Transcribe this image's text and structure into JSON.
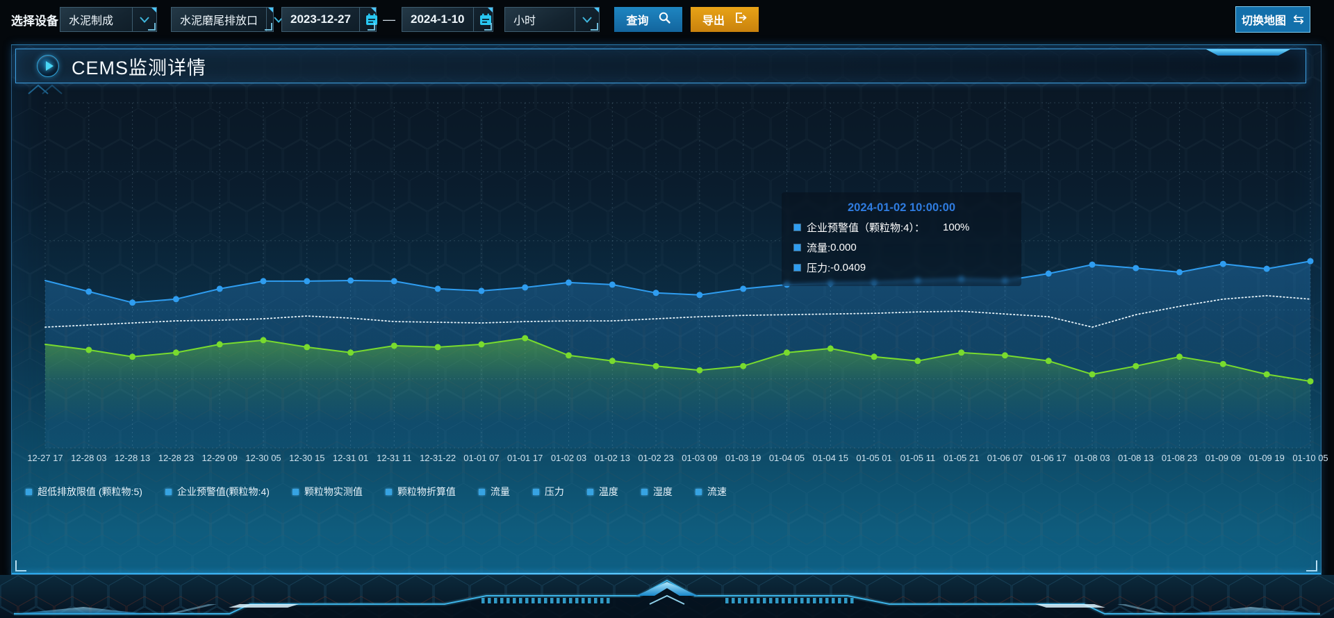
{
  "toolbar": {
    "device_label": "选择设备",
    "select_device": "水泥制成",
    "select_outlet": "水泥磨尾排放口",
    "date_start": "2023-12-27",
    "date_separator": "—",
    "date_end": "2024-1-10",
    "select_interval": "小时",
    "query_label": "查询",
    "export_label": "导出",
    "switch_map_label": "切换地图",
    "switch_icon": "⇆"
  },
  "panel": {
    "title": "CEMS监测详情"
  },
  "tooltip": {
    "timestamp": "2024-01-02 10:00:00",
    "rows": [
      {
        "name": "企业预警值（颗粒物:4）：",
        "value": "100%",
        "gap": true
      },
      {
        "name": "流量: ",
        "value": "0.000",
        "gap": false
      },
      {
        "name": "压力: ",
        "value": "-0.0409",
        "gap": false
      }
    ]
  },
  "colors": {
    "accent_blue": "#2f9df0",
    "accent_green": "#79db2e",
    "export_orange": "#dd9914",
    "panel_border": "#3fa0e0",
    "tooltip_date": "#2f7ce0"
  },
  "chart_data": {
    "type": "line",
    "title": "",
    "xlabel": "",
    "ylabel": "",
    "y_axis_visible": false,
    "ylim": [
      0,
      100
    ],
    "grid": true,
    "grid_color": "rgba(150,190,215,0.22)",
    "axis_label_color": "#cfe2ee",
    "legend_position": "bottom",
    "legend_marker_color": "#37a3e2",
    "legend": [
      "超低排放限值 (颗粒物:5)",
      "企业预警值(颗粒物:4)",
      "颗粒物实测值",
      "颗粒物折算值",
      "流量",
      "压力",
      "温度",
      "湿度",
      "流速"
    ],
    "x_labels": [
      "12-27 17",
      "12-28 03",
      "12-28 13",
      "12-28 23",
      "12-29 09",
      "12-30 05",
      "12-30 15",
      "12-31 01",
      "12-31 11",
      "12-31-22",
      "01-01 07",
      "01-01 17",
      "01-02 03",
      "01-02 13",
      "01-02 23",
      "01-03 09",
      "01-03 19",
      "01-04 05",
      "01-04 15",
      "01-05 01",
      "01-05 11",
      "01-05 21",
      "01-06 07",
      "01-06 17",
      "01-08 03",
      "01-08 13",
      "01-08 23",
      "01-09 09",
      "01-09 19",
      "01-10 05"
    ],
    "hover_x": "2024-01-02 10:00:00",
    "series": [
      {
        "name": "企业预警值(颗粒物:4)",
        "color": "#2f9df0",
        "style": "solid",
        "width": 2,
        "markers": true,
        "area_stops": [
          [
            0,
            0.3
          ],
          [
            0.5,
            0.14
          ],
          [
            1,
            0.06
          ]
        ],
        "values": [
          48.5,
          45.3,
          42.1,
          43.1,
          46.1,
          48.3,
          48.3,
          48.5,
          48.3,
          46.1,
          45.5,
          46.5,
          47.9,
          47.3,
          44.9,
          44.3,
          46.1,
          47.3,
          47.7,
          47.9,
          48.5,
          48.9,
          48.5,
          50.5,
          53.1,
          52.1,
          50.9,
          53.3,
          51.9,
          54.1
        ]
      },
      {
        "name": "流量",
        "color": "#e8f4fa",
        "style": "dotted",
        "width": 1.8,
        "dash": "1.5 3.5",
        "markers": false,
        "values": [
          35.0,
          35.6,
          36.2,
          36.8,
          37.0,
          37.4,
          38.2,
          37.6,
          36.6,
          36.4,
          36.2,
          36.6,
          36.8,
          36.8,
          37.4,
          38.0,
          38.4,
          38.6,
          38.8,
          39.0,
          39.4,
          39.6,
          38.8,
          38.0,
          35.0,
          38.6,
          41.0,
          43.1,
          44.1,
          43.1
        ]
      },
      {
        "name": "压力",
        "color": "#79db2e",
        "style": "solid",
        "width": 2,
        "markers": true,
        "area_stops": [
          [
            0,
            0.42
          ],
          [
            0.4,
            0.12
          ],
          [
            0.78,
            0
          ]
        ],
        "values": [
          30.0,
          28.4,
          26.4,
          27.6,
          30.0,
          31.2,
          29.2,
          27.6,
          29.6,
          29.2,
          30.0,
          31.8,
          26.8,
          25.2,
          23.7,
          22.5,
          23.7,
          27.6,
          28.8,
          26.4,
          25.2,
          27.6,
          26.8,
          25.2,
          21.3,
          23.7,
          26.4,
          24.3,
          21.3,
          19.3
        ]
      }
    ]
  }
}
